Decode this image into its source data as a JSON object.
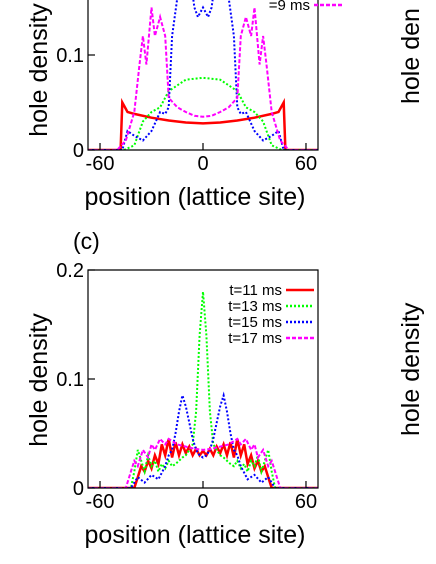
{
  "colors": {
    "red": "#ff0000",
    "green": "#00ff00",
    "blue": "#0000ff",
    "magenta": "#ff00ff"
  },
  "chart_data": [
    {
      "type": "line",
      "panel_label": "",
      "xlabel": "position (lattice site)",
      "ylabel": "hole density",
      "xlim": [
        -67,
        67
      ],
      "ylim": [
        0,
        0.2
      ],
      "xticks": [
        -60,
        0,
        60
      ],
      "xtick_labels": [
        "-60",
        "0",
        "60"
      ],
      "yticks": [
        0,
        0.1
      ],
      "ytick_labels": [
        "0",
        "0.1"
      ],
      "legend": {
        "placement": "top-right",
        "visible_entries": [
          "=9 ms"
        ]
      },
      "series": [
        {
          "name": "",
          "color": "#ff0000",
          "dash": "solid",
          "x": [
            -67,
            -48,
            -47,
            -44,
            -40,
            -30,
            -20,
            -10,
            0,
            10,
            20,
            30,
            40,
            44,
            47,
            48,
            67
          ],
          "y": [
            0,
            0,
            0.05,
            0.04,
            0.038,
            0.034,
            0.031,
            0.029,
            0.028,
            0.029,
            0.031,
            0.034,
            0.038,
            0.04,
            0.05,
            0,
            0
          ]
        },
        {
          "name": "",
          "color": "#00ff00",
          "dash": "dot",
          "x": [
            -67,
            -46,
            -40,
            -35,
            -30,
            -25,
            -20,
            -10,
            0,
            10,
            20,
            25,
            30,
            35,
            40,
            46,
            67
          ],
          "y": [
            0,
            0,
            0.005,
            0.03,
            0.04,
            0.045,
            0.062,
            0.074,
            0.076,
            0.074,
            0.062,
            0.045,
            0.04,
            0.03,
            0.005,
            0,
            0
          ]
        },
        {
          "name": "",
          "color": "#0000ff",
          "dash": "dot",
          "x": [
            -67,
            -47,
            -44,
            -40,
            -35,
            -30,
            -25,
            -22,
            -20,
            -18,
            -15,
            -12,
            -10,
            -8,
            -5,
            -3,
            0,
            3,
            5,
            8,
            10,
            12,
            15,
            18,
            20,
            22,
            25,
            30,
            35,
            40,
            44,
            47,
            67
          ],
          "y": [
            0,
            0,
            0.02,
            0.015,
            0.01,
            0.02,
            0.04,
            0.038,
            0.045,
            0.12,
            0.16,
            0.19,
            0.2,
            0.19,
            0.15,
            0.14,
            0.15,
            0.14,
            0.15,
            0.19,
            0.2,
            0.19,
            0.16,
            0.12,
            0.045,
            0.038,
            0.04,
            0.02,
            0.01,
            0.015,
            0.02,
            0,
            0
          ]
        },
        {
          "name": "=9 ms",
          "color": "#ff00ff",
          "dash": "dash",
          "x": [
            -67,
            -50,
            -45,
            -40,
            -37,
            -35,
            -33,
            -30,
            -28,
            -25,
            -22,
            -20,
            -15,
            -10,
            -5,
            0,
            5,
            10,
            15,
            20,
            22,
            25,
            28,
            30,
            33,
            35,
            37,
            40,
            45,
            50,
            67
          ],
          "y": [
            0,
            0,
            0.01,
            0.04,
            0.09,
            0.12,
            0.09,
            0.15,
            0.12,
            0.14,
            0.12,
            0.055,
            0.045,
            0.04,
            0.036,
            0.035,
            0.036,
            0.04,
            0.045,
            0.055,
            0.12,
            0.14,
            0.12,
            0.15,
            0.09,
            0.12,
            0.09,
            0.04,
            0.01,
            0,
            0
          ]
        }
      ]
    },
    {
      "type": "line",
      "panel_label": "(c)",
      "xlabel": "position (lattice site)",
      "ylabel": "hole density",
      "xlim": [
        -67,
        67
      ],
      "ylim": [
        0,
        0.2
      ],
      "xticks": [
        -60,
        0,
        60
      ],
      "xtick_labels": [
        "-60",
        "0",
        "60"
      ],
      "yticks": [
        0,
        0.1,
        0.2
      ],
      "ytick_labels": [
        "0",
        "0.1",
        "0.2"
      ],
      "legend": {
        "placement": "top-right",
        "visible_entries": [
          "t=11 ms",
          "t=13 ms",
          "t=15 ms",
          "t=17 ms"
        ]
      },
      "series": [
        {
          "name": "t=11 ms",
          "color": "#ff0000",
          "dash": "solid",
          "x": [
            -67,
            -40,
            -38,
            -36,
            -34,
            -32,
            -30,
            -28,
            -26,
            -24,
            -22,
            -20,
            -18,
            -16,
            -14,
            -12,
            -10,
            -8,
            -6,
            -4,
            -2,
            0,
            2,
            4,
            6,
            8,
            10,
            12,
            14,
            16,
            18,
            20,
            22,
            24,
            26,
            28,
            30,
            32,
            34,
            36,
            38,
            40,
            67
          ],
          "y": [
            0,
            0,
            0.01,
            0.02,
            0.015,
            0.025,
            0.018,
            0.03,
            0.022,
            0.04,
            0.03,
            0.045,
            0.028,
            0.042,
            0.03,
            0.04,
            0.032,
            0.038,
            0.03,
            0.036,
            0.03,
            0.034,
            0.03,
            0.036,
            0.03,
            0.038,
            0.032,
            0.04,
            0.03,
            0.042,
            0.028,
            0.045,
            0.03,
            0.04,
            0.022,
            0.03,
            0.018,
            0.025,
            0.015,
            0.02,
            0.01,
            0,
            0
          ]
        },
        {
          "name": "t=13 ms",
          "color": "#00ff00",
          "dash": "dot",
          "x": [
            -67,
            -42,
            -40,
            -38,
            -36,
            -34,
            -32,
            -30,
            -28,
            -26,
            -24,
            -22,
            -20,
            -18,
            -16,
            -14,
            -12,
            -10,
            -8,
            -6,
            -4,
            -2,
            0,
            2,
            4,
            6,
            8,
            10,
            12,
            14,
            16,
            18,
            20,
            22,
            24,
            26,
            28,
            30,
            32,
            34,
            36,
            38,
            40,
            42,
            67
          ],
          "y": [
            0,
            0,
            0.015,
            0.035,
            0.025,
            0.015,
            0.03,
            0.02,
            0.025,
            0.015,
            0.022,
            0.018,
            0.025,
            0.02,
            0.022,
            0.025,
            0.028,
            0.03,
            0.035,
            0.04,
            0.07,
            0.14,
            0.18,
            0.14,
            0.07,
            0.04,
            0.035,
            0.03,
            0.028,
            0.025,
            0.022,
            0.02,
            0.025,
            0.018,
            0.022,
            0.015,
            0.025,
            0.02,
            0.03,
            0.015,
            0.025,
            0.035,
            0.015,
            0,
            0
          ]
        },
        {
          "name": "t=15 ms",
          "color": "#0000ff",
          "dash": "dot",
          "x": [
            -67,
            -42,
            -38,
            -34,
            -30,
            -26,
            -22,
            -20,
            -18,
            -16,
            -14,
            -12,
            -10,
            -8,
            -6,
            -4,
            -2,
            0,
            2,
            4,
            6,
            8,
            10,
            12,
            14,
            16,
            18,
            20,
            22,
            26,
            30,
            34,
            38,
            42,
            67
          ],
          "y": [
            0,
            0,
            0.01,
            0.005,
            0.012,
            0.008,
            0.02,
            0.03,
            0.035,
            0.05,
            0.07,
            0.085,
            0.075,
            0.06,
            0.045,
            0.035,
            0.03,
            0.028,
            0.03,
            0.035,
            0.045,
            0.06,
            0.075,
            0.085,
            0.07,
            0.05,
            0.035,
            0.03,
            0.02,
            0.008,
            0.012,
            0.005,
            0.01,
            0,
            0
          ]
        },
        {
          "name": "t=17 ms",
          "color": "#ff00ff",
          "dash": "dash",
          "x": [
            -67,
            -45,
            -42,
            -40,
            -38,
            -35,
            -32,
            -30,
            -28,
            -25,
            -22,
            -20,
            -15,
            -10,
            -5,
            0,
            5,
            10,
            15,
            20,
            22,
            25,
            28,
            30,
            32,
            35,
            38,
            40,
            42,
            45,
            67
          ],
          "y": [
            0,
            0,
            0.015,
            0.025,
            0.02,
            0.035,
            0.028,
            0.04,
            0.035,
            0.045,
            0.04,
            0.045,
            0.04,
            0.038,
            0.036,
            0.035,
            0.036,
            0.038,
            0.04,
            0.045,
            0.04,
            0.045,
            0.035,
            0.04,
            0.028,
            0.035,
            0.02,
            0.025,
            0.015,
            0,
            0
          ]
        }
      ]
    }
  ],
  "right_edge_fragments": {
    "ylabel_top": "hole den",
    "ylabel_bottom": "hole density"
  }
}
